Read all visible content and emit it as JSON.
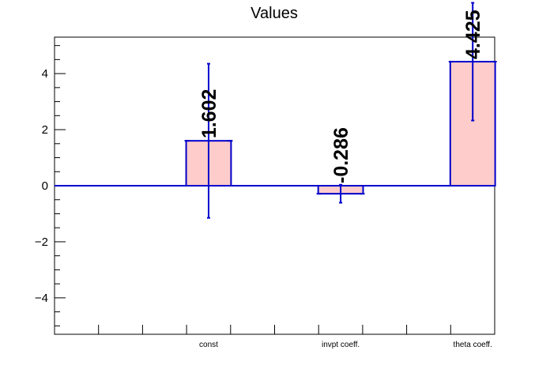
{
  "chart_data": {
    "type": "bar",
    "title": "Values",
    "xlabel": "",
    "ylabel": "",
    "categories": [
      "const",
      "invpt coeff.",
      "theta coeff."
    ],
    "values": [
      1.602,
      -0.286,
      4.425
    ],
    "value_labels": [
      "1.602",
      "-0.286",
      "4.425"
    ],
    "errors": [
      2.75,
      0.32,
      2.1
    ],
    "ylim": [
      -5.3,
      5.3
    ],
    "y_ticks": [
      -4,
      -2,
      0,
      2,
      4
    ],
    "y_tick_labels": [
      "−4",
      "−2",
      "0",
      "2",
      "4"
    ],
    "grid": false,
    "legend": "none",
    "colors": {
      "bar_fill": "#ffcccc",
      "bar_edge": "#0000cc",
      "error_bar": "#0000cc",
      "zero_line": "#0000cc",
      "axis": "#000000",
      "text": "#000000"
    }
  }
}
